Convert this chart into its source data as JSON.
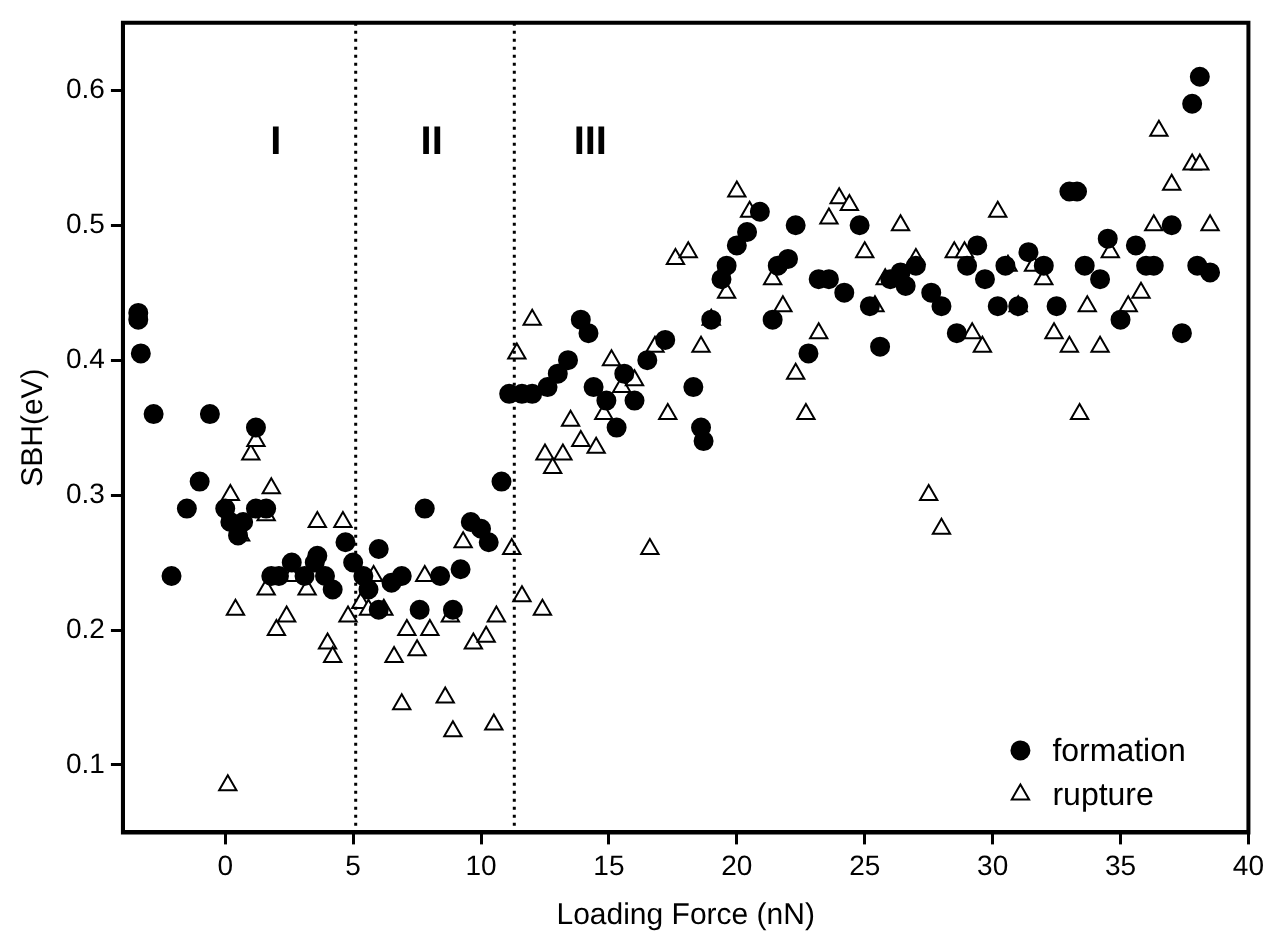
{
  "chart_data": {
    "type": "scatter",
    "xlabel": "Loading Force (nN)",
    "ylabel": "SBH(eV)",
    "xlim": [
      -4,
      40
    ],
    "xticks": [
      0,
      5,
      10,
      15,
      20,
      25,
      30,
      35,
      40
    ],
    "ylim": [
      0.05,
      0.65
    ],
    "yticks": [
      0.1,
      0.2,
      0.3,
      0.4,
      0.5,
      0.6
    ],
    "grid": false,
    "legend": "bottom right",
    "ref_lines": [
      {
        "axis": "x",
        "value": 5.1,
        "line_style": "dotted",
        "color": "#000000"
      },
      {
        "axis": "x",
        "value": 11.3,
        "line_style": "dotted",
        "color": "#000000"
      }
    ],
    "annotations": [
      "I",
      "II",
      "III"
    ],
    "series": [
      {
        "name": "formation",
        "color": "#000000",
        "marker": "circle",
        "x": [
          -3.4,
          -3.4,
          -3.3,
          -2.8,
          -2.1,
          -1.5,
          -1.0,
          -0.6,
          0,
          0.2,
          0.5,
          0.7,
          1.2,
          1.2,
          1.6,
          1.8,
          2.1,
          2.6,
          3.1,
          3.5,
          3.6,
          3.9,
          4.2,
          4.7,
          5.0,
          5.4,
          5.6,
          6.0,
          6.0,
          6.5,
          6.9,
          7.6,
          7.8,
          8.4,
          8.9,
          9.2,
          9.6,
          10.0,
          10.3,
          10.8,
          11.1,
          11.6,
          12.0,
          12.6,
          13.0,
          13.4,
          13.9,
          14.2,
          14.4,
          14.9,
          15.3,
          15.6,
          16.0,
          16.5,
          17.2,
          18.3,
          18.6,
          18.7,
          19.0,
          19.4,
          19.6,
          20.0,
          20.4,
          20.9,
          21.4,
          21.6,
          22.0,
          22.3,
          22.8,
          23.2,
          23.6,
          24.2,
          24.8,
          25.2,
          25.6,
          26.0,
          26.4,
          26.6,
          27.0,
          27.6,
          28.0,
          28.6,
          29.0,
          29.4,
          29.7,
          30.2,
          30.5,
          31.0,
          31.4,
          32.0,
          32.5,
          33.0,
          33.3,
          33.6,
          34.2,
          34.5,
          35.0,
          35.6,
          36.0,
          36.3,
          37.0,
          37.4,
          37.8,
          38.1,
          38.5,
          38.0
        ],
        "values": [
          0.435,
          0.43,
          0.405,
          0.36,
          0.24,
          0.29,
          0.31,
          0.36,
          0.29,
          0.28,
          0.27,
          0.28,
          0.35,
          0.29,
          0.29,
          0.24,
          0.24,
          0.25,
          0.24,
          0.25,
          0.255,
          0.24,
          0.23,
          0.265,
          0.25,
          0.24,
          0.23,
          0.26,
          0.215,
          0.235,
          0.24,
          0.215,
          0.29,
          0.24,
          0.215,
          0.245,
          0.28,
          0.275,
          0.265,
          0.31,
          0.375,
          0.375,
          0.375,
          0.38,
          0.39,
          0.4,
          0.43,
          0.42,
          0.38,
          0.37,
          0.35,
          0.39,
          0.37,
          0.4,
          0.415,
          0.38,
          0.35,
          0.34,
          0.43,
          0.46,
          0.47,
          0.485,
          0.495,
          0.51,
          0.43,
          0.47,
          0.475,
          0.5,
          0.405,
          0.46,
          0.46,
          0.45,
          0.5,
          0.44,
          0.41,
          0.46,
          0.465,
          0.455,
          0.47,
          0.45,
          0.44,
          0.42,
          0.47,
          0.485,
          0.46,
          0.44,
          0.47,
          0.44,
          0.48,
          0.47,
          0.44,
          0.525,
          0.525,
          0.47,
          0.46,
          0.49,
          0.43,
          0.485,
          0.47,
          0.47,
          0.5,
          0.42,
          0.59,
          0.61,
          0.465,
          0.47
        ]
      },
      {
        "name": "rupture",
        "color": "#000000",
        "marker": "triangle",
        "x": [
          0.1,
          0.2,
          0.4,
          0.6,
          1.0,
          1.2,
          1.6,
          1.8,
          1.6,
          2.0,
          2.4,
          2.6,
          3.2,
          3.6,
          4.0,
          4.2,
          4.6,
          4.8,
          5.3,
          5.6,
          5.8,
          6.2,
          6.9,
          6.6,
          7.1,
          7.5,
          7.8,
          8.0,
          8.6,
          8.8,
          8.9,
          9.3,
          9.7,
          10.2,
          10.5,
          10.6,
          11.2,
          11.4,
          11.6,
          12.0,
          12.4,
          12.5,
          12.8,
          13.2,
          13.5,
          13.9,
          14.5,
          14.8,
          15.1,
          15.5,
          16.0,
          16.6,
          16.8,
          17.3,
          17.6,
          18.1,
          18.6,
          19.0,
          19.6,
          20.0,
          20.5,
          21.4,
          21.8,
          22.3,
          22.7,
          23.2,
          23.6,
          24.0,
          24.4,
          25.0,
          25.4,
          25.8,
          26.4,
          27.0,
          27.5,
          28.0,
          28.5,
          28.9,
          29.2,
          29.6,
          30.2,
          30.6,
          31.0,
          31.6,
          32.0,
          32.4,
          33.0,
          33.4,
          33.7,
          34.2,
          34.6,
          35.3,
          35.8,
          36.3,
          36.5,
          37.0,
          37.8,
          38.1,
          38.5
        ],
        "values": [
          0.085,
          0.3,
          0.215,
          0.27,
          0.33,
          0.34,
          0.285,
          0.305,
          0.23,
          0.2,
          0.21,
          0.24,
          0.23,
          0.28,
          0.19,
          0.18,
          0.28,
          0.21,
          0.22,
          0.215,
          0.24,
          0.215,
          0.145,
          0.18,
          0.2,
          0.185,
          0.24,
          0.2,
          0.15,
          0.21,
          0.125,
          0.265,
          0.19,
          0.195,
          0.13,
          0.21,
          0.26,
          0.405,
          0.225,
          0.43,
          0.215,
          0.33,
          0.32,
          0.33,
          0.355,
          0.34,
          0.335,
          0.36,
          0.4,
          0.38,
          0.385,
          0.26,
          0.41,
          0.36,
          0.475,
          0.48,
          0.41,
          0.43,
          0.45,
          0.525,
          0.51,
          0.46,
          0.44,
          0.39,
          0.36,
          0.42,
          0.505,
          0.52,
          0.515,
          0.48,
          0.44,
          0.46,
          0.5,
          0.475,
          0.3,
          0.275,
          0.48,
          0.48,
          0.42,
          0.41,
          0.51,
          0.47,
          0.44,
          0.47,
          0.46,
          0.42,
          0.41,
          0.36,
          0.44,
          0.41,
          0.48,
          0.44,
          0.45,
          0.5,
          0.57,
          0.53,
          0.545,
          0.545,
          0.5
        ]
      }
    ]
  }
}
